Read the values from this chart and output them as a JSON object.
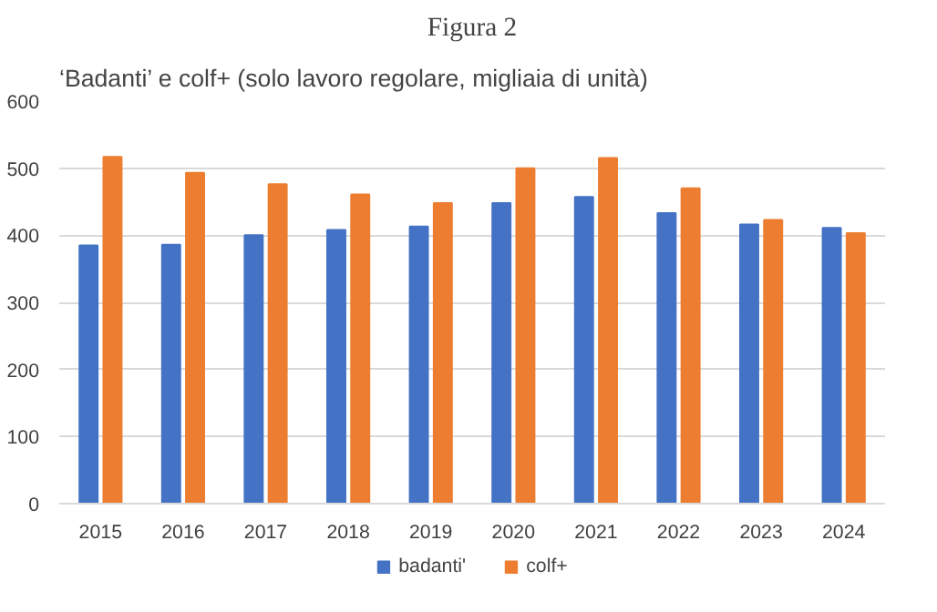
{
  "chart_data": {
    "type": "bar",
    "title": "Figura 2",
    "subtitle": "‘Badanti’ e colf+ (solo lavoro regolare, migliaia di unità)",
    "categories": [
      "2015",
      "2016",
      "2017",
      "2018",
      "2019",
      "2020",
      "2021",
      "2022",
      "2023",
      "2024"
    ],
    "series": [
      {
        "name": "badanti'",
        "color": "#4472c4",
        "values": [
          385,
          386,
          400,
          408,
          413,
          448,
          457,
          433,
          416,
          411
        ]
      },
      {
        "name": "colf+",
        "color": "#ed7d31",
        "values": [
          517,
          493,
          476,
          461,
          448,
          500,
          515,
          470,
          423,
          403
        ]
      }
    ],
    "ylim": [
      0,
      600
    ],
    "yticks": [
      0,
      100,
      200,
      300,
      400,
      500,
      600
    ],
    "grid": "y",
    "legend": "bottom"
  }
}
